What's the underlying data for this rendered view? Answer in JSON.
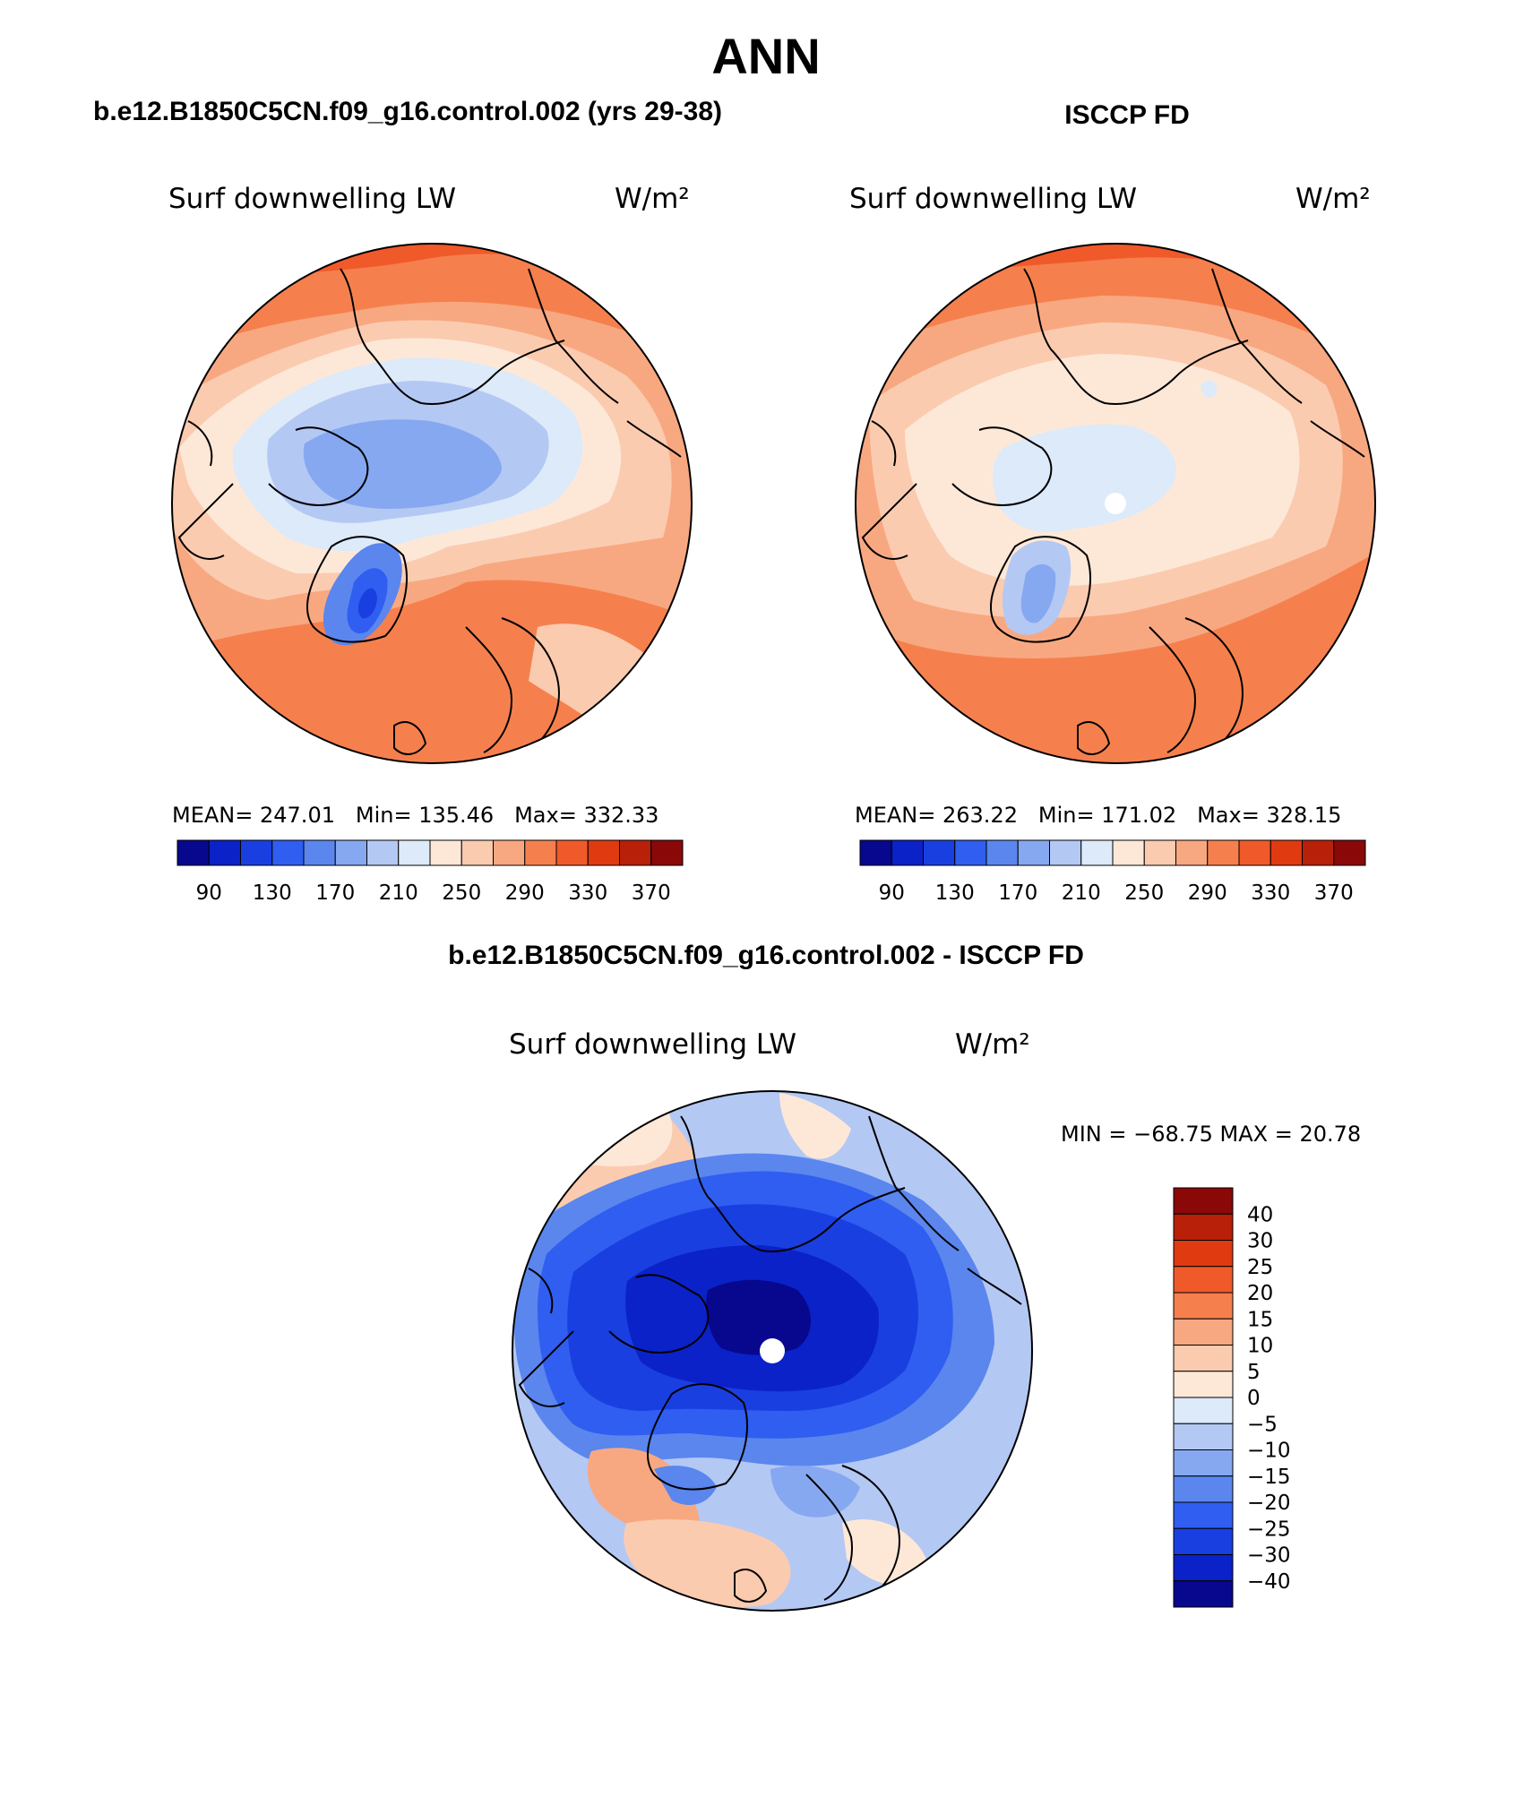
{
  "title": "ANN",
  "panels": [
    {
      "title": "b.e12.B1850C5CN.f09_g16.control.002 (yrs 29-38)",
      "variable": "Surf downwelling LW",
      "units": "W/m²",
      "mean_label": "MEAN=",
      "mean": "247.01",
      "min_label": "Min=",
      "min": "135.46",
      "max_label": "Max=",
      "max": "332.33"
    },
    {
      "title": "ISCCP FD",
      "variable": "Surf downwelling LW",
      "units": "W/m²",
      "mean_label": "MEAN=",
      "mean": "263.22",
      "min_label": "Min=",
      "min": "171.02",
      "max_label": "Max=",
      "max": "328.15"
    },
    {
      "title": "b.e12.B1850C5CN.f09_g16.control.002 - ISCCP FD",
      "variable": "Surf downwelling LW",
      "units": "W/m²",
      "minmax_text": "MIN = −68.75 MAX =  20.78"
    }
  ],
  "colorbar_abs": {
    "labels": [
      "90",
      "130",
      "170",
      "210",
      "250",
      "290",
      "330",
      "370"
    ],
    "colors": [
      "#08088e",
      "#0a22c8",
      "#1a3fe0",
      "#2f5ef0",
      "#5a86ee",
      "#86a8f0",
      "#b4c8f4",
      "#dceafa",
      "#fde8d8",
      "#fbcbb0",
      "#f8a880",
      "#f5804e",
      "#f05a2a",
      "#e03a10",
      "#b8200a",
      "#8a0808"
    ]
  },
  "colorbar_diff": {
    "labels": [
      "40",
      "30",
      "25",
      "20",
      "15",
      "10",
      "5",
      "0",
      "−5",
      "−10",
      "−15",
      "−20",
      "−25",
      "−30",
      "−40"
    ],
    "colors": [
      "#8a0808",
      "#b8200a",
      "#e03a10",
      "#f05a2a",
      "#f5804e",
      "#f8a880",
      "#fbcbb0",
      "#fde8d8",
      "#dceafa",
      "#b4c8f4",
      "#86a8f0",
      "#5a86ee",
      "#2f5ef0",
      "#1a3fe0",
      "#0a22c8",
      "#08088e"
    ]
  },
  "map_palette": {
    "deep_blue": "#08088e",
    "dark_blue": "#0a22c8",
    "blue": "#1a3fe0",
    "mid_blue": "#2f5ef0",
    "light_blue": "#86a8f0",
    "pale_blue": "#dceafa",
    "pale_orange": "#fde8d8",
    "peach": "#fbcbb0",
    "salmon": "#f8a880",
    "orange": "#f5804e",
    "red_orange": "#f05a2a"
  }
}
